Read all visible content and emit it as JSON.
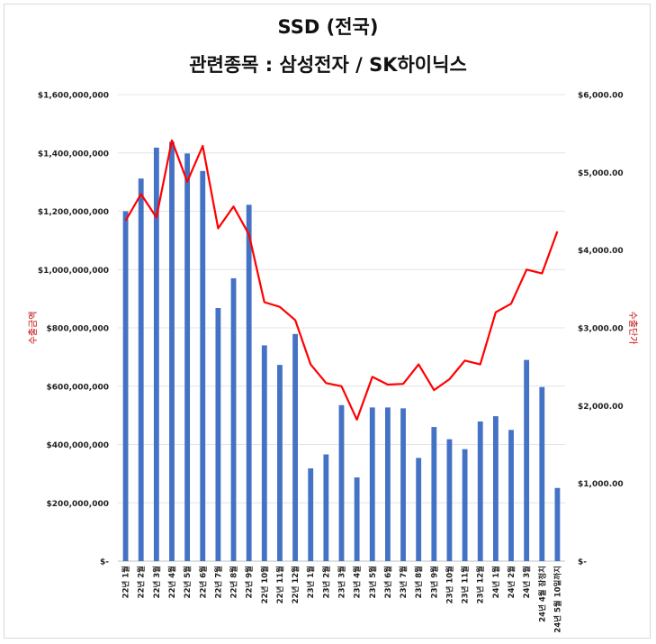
{
  "chart_data": {
    "type": "bar+line",
    "title": "SSD (전국)",
    "subtitle": "관련종목 : 삼성전자 / SK하이닉스",
    "y_left_label": "수출금액",
    "y_right_label": "수출단가",
    "y_left_ticks": [
      "$1,600,000,000",
      "$1,400,000,000",
      "$1,200,000,000",
      "$1,000,000,000",
      "$800,000,000",
      "$600,000,000",
      "$400,000,000",
      "$200,000,000",
      "$-"
    ],
    "y_right_ticks": [
      "$6,000.00",
      "$5,000.00",
      "$4,000.00",
      "$3,000.00",
      "$2,000.00",
      "$1,000.00",
      "$-"
    ],
    "y_left_range": [
      0,
      1600000000
    ],
    "y_right_range": [
      0,
      6000
    ],
    "categories": [
      "22년 1월",
      "22년 2월",
      "22년 3월",
      "22년 4월",
      "22년 5월",
      "22년 6월",
      "22년 7월",
      "22년 8월",
      "22년 9월",
      "22년 10월",
      "22년 11월",
      "22년 12월",
      "23년 1월",
      "23년 2월",
      "23년 3월",
      "23년 4월",
      "23년 5월",
      "23년 6월",
      "23년 7월",
      "23년 8월",
      "23년 9월",
      "23년 10월",
      "23년 11월",
      "23년 12월",
      "24년 1월",
      "24년 2월",
      "24년 3월",
      "24년 4월 잠정치",
      "24년 5월 10일까지"
    ],
    "series": [
      {
        "axis": "left",
        "type": "bar",
        "color": "#4472c4",
        "values": [
          1200000000,
          1312000000,
          1418000000,
          1438000000,
          1398000000,
          1338000000,
          868000000,
          970000000,
          1222000000,
          740000000,
          673000000,
          779000000,
          318000000,
          366000000,
          535000000,
          287000000,
          527000000,
          527000000,
          524000000,
          354000000,
          460000000,
          418000000,
          384000000,
          479000000,
          497000000,
          450000000,
          690000000,
          597000000,
          251000000
        ]
      },
      {
        "axis": "right",
        "type": "line",
        "color": "#ff0000",
        "values": [
          4380,
          4720,
          4420,
          5410,
          4880,
          5340,
          4280,
          4560,
          4200,
          3330,
          3270,
          3100,
          2530,
          2290,
          2250,
          1820,
          2370,
          2270,
          2280,
          2530,
          2200,
          2340,
          2580,
          2530,
          3200,
          3310,
          3750,
          3700,
          4240
        ]
      }
    ]
  }
}
